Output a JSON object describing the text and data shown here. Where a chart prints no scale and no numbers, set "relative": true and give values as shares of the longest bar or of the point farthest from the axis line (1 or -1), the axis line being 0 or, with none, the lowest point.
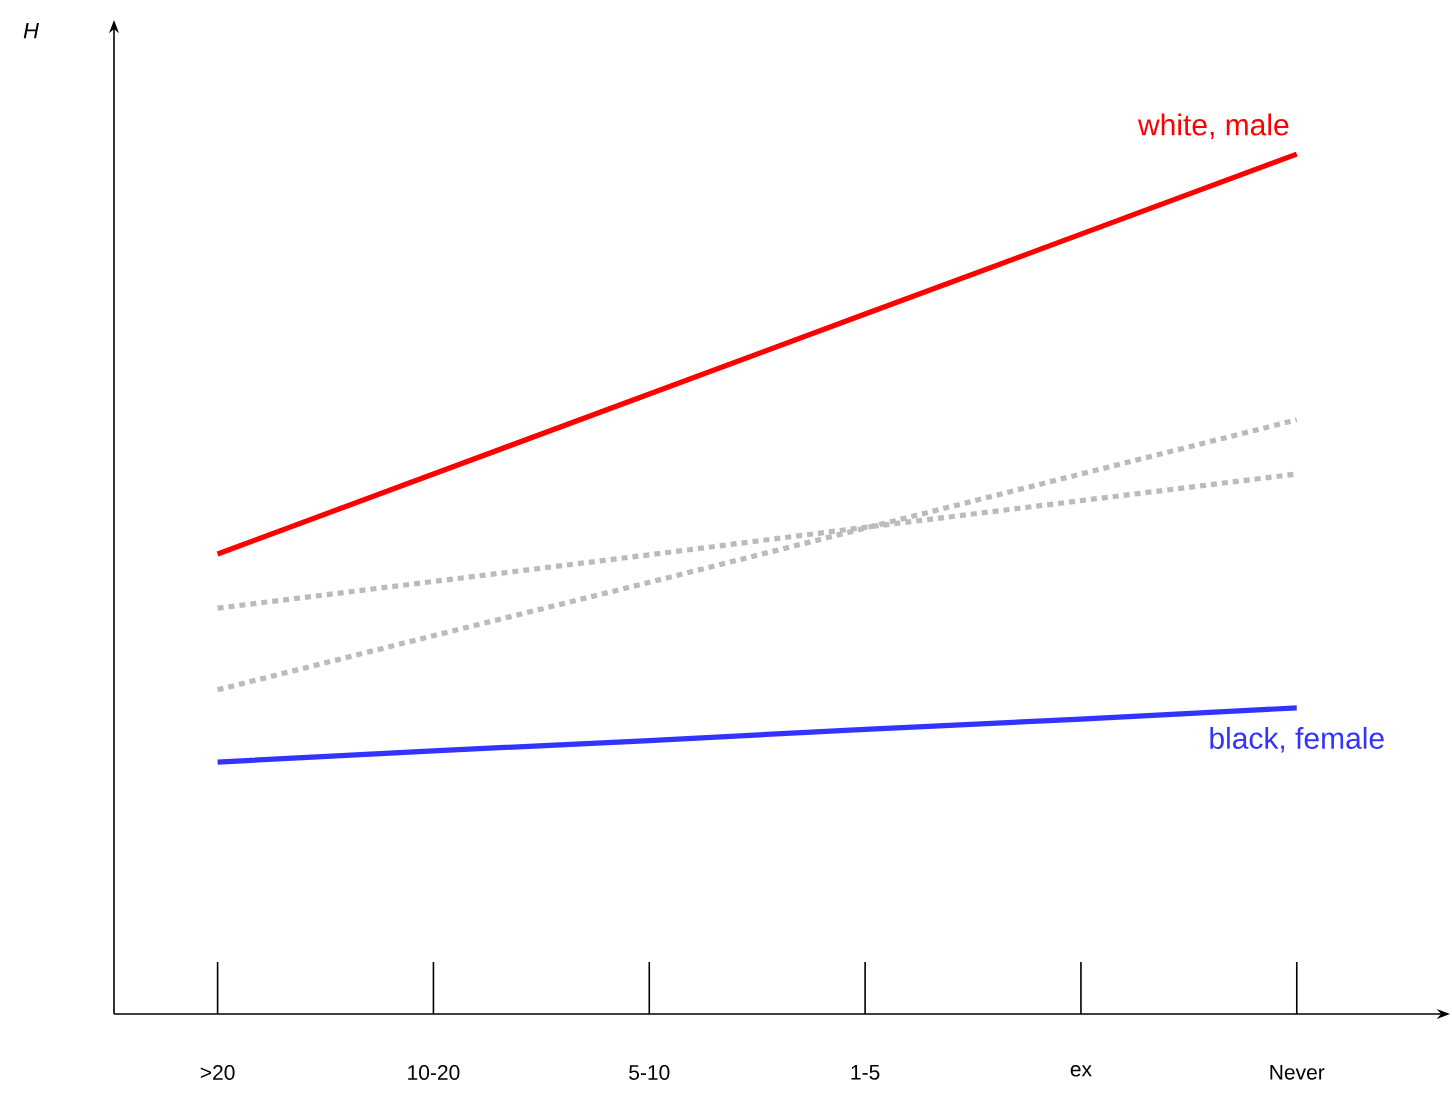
{
  "chart_data": {
    "type": "line",
    "annotations": [
      "H"
    ],
    "relative": true,
    "legend": false,
    "categories": [
      ">20",
      "10-20",
      "5-10",
      "1-5",
      "ex",
      "Never"
    ],
    "series": [
      {
        "name": "white, male",
        "color": "#ff0000",
        "line_style": "solid",
        "values": [
          0.535,
          0.628,
          0.721,
          0.814,
          0.907,
          1.0
        ]
      },
      {
        "color": "#bbbbbb",
        "line_style": "dotted",
        "values": [
          0.472,
          0.503,
          0.534,
          0.566,
          0.597,
          0.628
        ]
      },
      {
        "color": "#bbbbbb",
        "line_style": "dotted",
        "values": [
          0.377,
          0.44,
          0.502,
          0.565,
          0.628,
          0.691
        ]
      },
      {
        "name": "black, female",
        "color": "#3333ff",
        "line_style": "solid",
        "values": [
          0.293,
          0.306,
          0.318,
          0.331,
          0.343,
          0.356
        ]
      }
    ]
  }
}
